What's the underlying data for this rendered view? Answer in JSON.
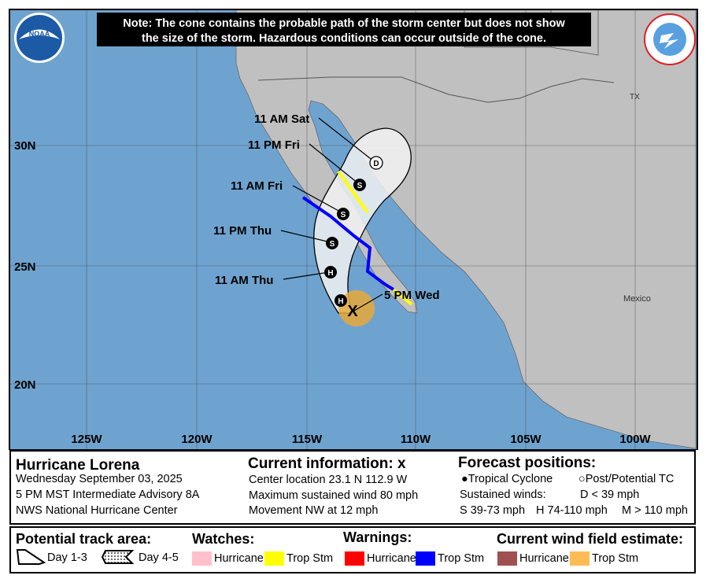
{
  "note": {
    "line1": "Note: The cone contains the probable path of the storm center but does not show",
    "line2": "the size of the storm. Hazardous conditions can occur outside of the cone."
  },
  "logos": {
    "left": "NOAA",
    "right": "NATIONAL WEATHER SERVICE"
  },
  "map": {
    "lat_labels": [
      "30N",
      "25N",
      "20N"
    ],
    "lon_labels": [
      "125W",
      "120W",
      "115W",
      "110W",
      "105W",
      "100W"
    ],
    "region_labels": {
      "tx": "TX",
      "mexico": "Mexico"
    },
    "colors": {
      "ocean": "#6fa3cf",
      "land": "#c0c0c0",
      "cone": "#f2f2f2",
      "trop_storm_watch": "#ffff00",
      "trop_storm_warning": "#0000ff",
      "trop_storm_wind": "#e8a93a"
    },
    "forecast_points": [
      {
        "label": "5 PM Wed",
        "symbol": "X"
      },
      {
        "label": "",
        "symbol": "H"
      },
      {
        "label": "11 AM Thu",
        "symbol": "H"
      },
      {
        "label": "11 PM Thu",
        "symbol": "S"
      },
      {
        "label": "11 AM Fri",
        "symbol": "S"
      },
      {
        "label": "11 PM Fri",
        "symbol": "S"
      },
      {
        "label": "11 AM Sat",
        "symbol": "D"
      }
    ]
  },
  "info": {
    "storm_name": "Hurricane Lorena",
    "date": "Wednesday September 03, 2025",
    "advisory": "5 PM MST Intermediate Advisory 8A",
    "center": "NWS National Hurricane Center",
    "current_title": "Current information: ",
    "current_mark": "x",
    "location": "Center location 23.1 N 112.9 W",
    "max_wind": "Maximum sustained wind 80 mph",
    "movement": "Movement NW at 12 mph",
    "forecast_title": "Forecast positions:",
    "tropical_cyclone": "Tropical Cyclone",
    "post_potential": "Post/Potential TC",
    "sustained_winds": "Sustained winds:",
    "d_range": "D < 39 mph",
    "s_range": "S 39-73 mph",
    "h_range": "H 74-110 mph",
    "m_range": "M > 110 mph"
  },
  "legend": {
    "track_title": "Potential track area:",
    "day13": "Day 1-3",
    "day45": "Day 4-5",
    "watches_title": "Watches:",
    "warnings_title": "Warnings:",
    "wind_title": "Current wind field estimate:",
    "hurricane": "Hurricane",
    "trop_stm": "Trop Stm",
    "colors": {
      "hurr_watch": "#ffc0cb",
      "ts_watch": "#ffff00",
      "hurr_warn": "#ff0000",
      "ts_warn": "#0000ff",
      "hurr_wind": "#a05050",
      "ts_wind": "#ffbb55"
    }
  }
}
